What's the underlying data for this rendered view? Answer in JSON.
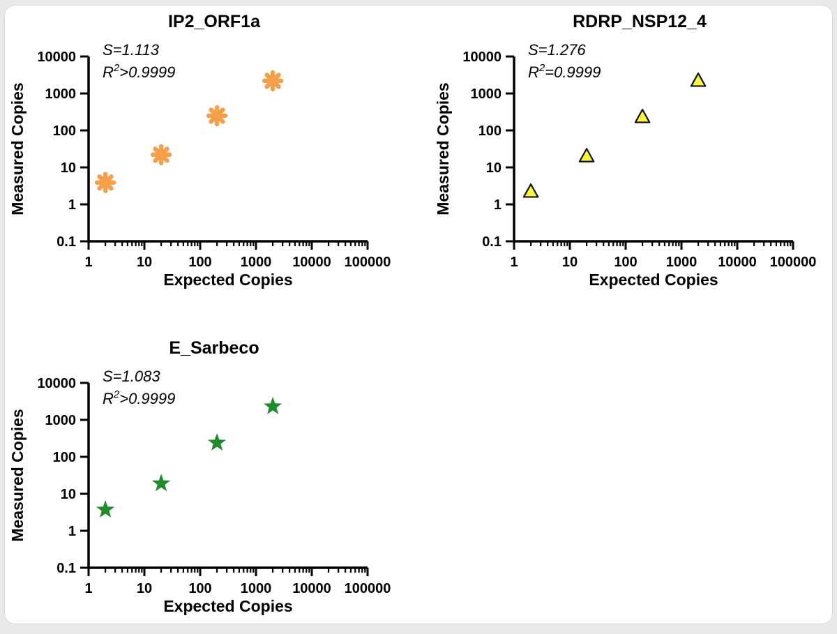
{
  "page": {
    "background": "#e9e9e9",
    "card_background": "#ffffff",
    "card_border": "#dadada",
    "text_color": "#000000"
  },
  "chart_data": [
    {
      "type": "scatter",
      "title": "IP2_ORF1a",
      "xlabel": "Expected Copies",
      "ylabel": "Measured Copies",
      "x_scale": "log",
      "y_scale": "log",
      "xlim": [
        1,
        100000
      ],
      "ylim": [
        0.1,
        10000
      ],
      "x_ticks": [
        "1",
        "10",
        "100",
        "1000",
        "10000",
        "100000"
      ],
      "y_ticks": [
        "0.1",
        "1",
        "10",
        "100",
        "1000",
        "10000"
      ],
      "grid": false,
      "legend": false,
      "annotations": {
        "slope": "S=1.113",
        "r_squared": "R²>0.9999"
      },
      "marker": {
        "shape": "asterisk",
        "color": "#F4A04A",
        "name": "orange-asterisk"
      },
      "x": [
        2,
        20,
        200,
        2000
      ],
      "y": [
        3.9,
        22,
        250,
        2200
      ]
    },
    {
      "type": "scatter",
      "title": "RDRP_NSP12_4",
      "xlabel": "Expected Copies",
      "ylabel": "Measured Copies",
      "x_scale": "log",
      "y_scale": "log",
      "xlim": [
        1,
        100000
      ],
      "ylim": [
        0.1,
        10000
      ],
      "x_ticks": [
        "1",
        "10",
        "100",
        "1000",
        "10000",
        "100000"
      ],
      "y_ticks": [
        "0.1",
        "1",
        "10",
        "100",
        "1000",
        "10000"
      ],
      "grid": false,
      "legend": false,
      "annotations": {
        "slope": "S=1.276",
        "r_squared": "R²=0.9999"
      },
      "marker": {
        "shape": "triangle",
        "color": "#FAF83E",
        "outline": "#111111",
        "name": "yellow-triangle"
      },
      "x": [
        2,
        20,
        200,
        2000
      ],
      "y": [
        2.2,
        20,
        230,
        2200
      ]
    },
    {
      "type": "scatter",
      "title": "E_Sarbeco",
      "xlabel": "Expected Copies",
      "ylabel": "Measured Copies",
      "x_scale": "log",
      "y_scale": "log",
      "xlim": [
        1,
        100000
      ],
      "ylim": [
        0.1,
        10000
      ],
      "x_ticks": [
        "1",
        "10",
        "100",
        "1000",
        "10000",
        "100000"
      ],
      "y_ticks": [
        "0.1",
        "1",
        "10",
        "100",
        "1000",
        "10000"
      ],
      "grid": false,
      "legend": false,
      "annotations": {
        "slope": "S=1.083",
        "r_squared": "R²>0.9999"
      },
      "marker": {
        "shape": "star",
        "color": "#1E8C28",
        "name": "green-star"
      },
      "x": [
        2,
        20,
        200,
        2000
      ],
      "y": [
        3.7,
        19,
        240,
        2300
      ]
    }
  ]
}
